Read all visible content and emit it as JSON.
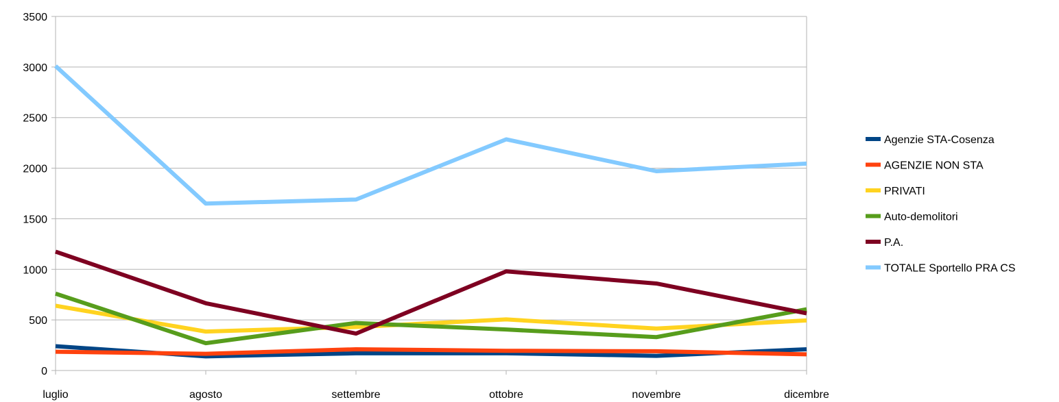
{
  "chart_data": {
    "type": "line",
    "title": "",
    "xlabel": "",
    "ylabel": "",
    "categories": [
      "luglio",
      "agosto",
      "settembre",
      "ottobre",
      "novembre",
      "dicembre"
    ],
    "ylim": [
      0,
      3500
    ],
    "yticks": [
      0,
      500,
      1000,
      1500,
      2000,
      2500,
      3000,
      3500
    ],
    "grid": "horizontal",
    "legend_position": "right",
    "series": [
      {
        "name": "Agenzie STA-Cosenza",
        "color": "#004586",
        "values": [
          240,
          140,
          170,
          170,
          145,
          210
        ]
      },
      {
        "name": "AGENZIE NON STA",
        "color": "#ff420e",
        "values": [
          185,
          165,
          210,
          195,
          190,
          160
        ]
      },
      {
        "name": "PRIVATI",
        "color": "#ffd320",
        "values": [
          640,
          385,
          430,
          505,
          415,
          495
        ]
      },
      {
        "name": "Auto-demolitori",
        "color": "#579d1c",
        "values": [
          760,
          270,
          470,
          405,
          330,
          605
        ]
      },
      {
        "name": "P.A.",
        "color": "#7e0021",
        "values": [
          1175,
          665,
          365,
          980,
          860,
          565
        ]
      },
      {
        "name": "TOTALE Sportello PRA CS",
        "color": "#83caff",
        "values": [
          3010,
          1650,
          1690,
          2285,
          1970,
          2045
        ]
      }
    ]
  }
}
